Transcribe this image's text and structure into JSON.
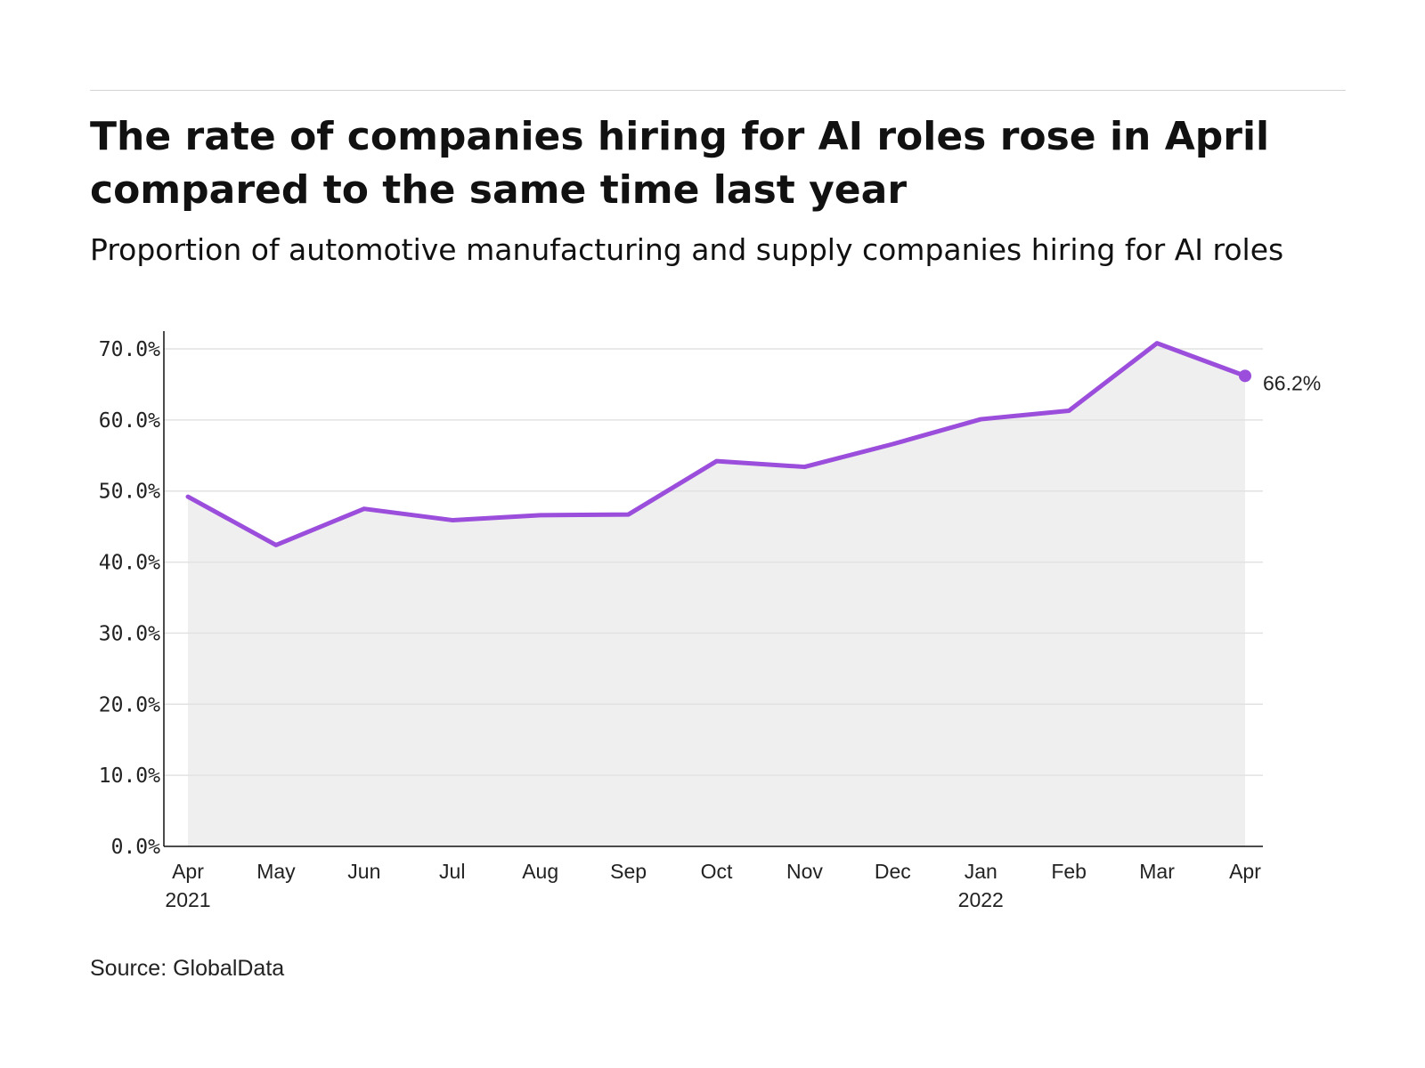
{
  "header": {
    "title": "The rate of companies hiring for AI roles rose in April compared to the same time last year",
    "subtitle": "Proportion of automotive manufacturing and supply companies hiring for AI roles"
  },
  "footer": {
    "source": "Source: GlobalData"
  },
  "chart_data": {
    "type": "area",
    "title": "The rate of companies hiring for AI roles rose in April compared to the same time last year",
    "subtitle": "Proportion of automotive manufacturing and supply companies hiring for AI roles",
    "xlabel": "",
    "ylabel": "",
    "categories": [
      "Apr 2021",
      "May",
      "Jun",
      "Jul",
      "Aug",
      "Sep",
      "Oct",
      "Nov",
      "Dec",
      "Jan 2022",
      "Feb",
      "Mar",
      "Apr"
    ],
    "x_tick_labels": [
      {
        "line1": "Apr",
        "line2": "2021"
      },
      {
        "line1": "May",
        "line2": ""
      },
      {
        "line1": "Jun",
        "line2": ""
      },
      {
        "line1": "Jul",
        "line2": ""
      },
      {
        "line1": "Aug",
        "line2": ""
      },
      {
        "line1": "Sep",
        "line2": ""
      },
      {
        "line1": "Oct",
        "line2": ""
      },
      {
        "line1": "Nov",
        "line2": ""
      },
      {
        "line1": "Dec",
        "line2": ""
      },
      {
        "line1": "Jan",
        "line2": "2022"
      },
      {
        "line1": "Feb",
        "line2": ""
      },
      {
        "line1": "Mar",
        "line2": ""
      },
      {
        "line1": "Apr",
        "line2": ""
      }
    ],
    "series": [
      {
        "values": [
          49.2,
          42.4,
          47.5,
          45.9,
          46.6,
          46.7,
          54.2,
          53.4,
          56.6,
          60.1,
          61.3,
          70.8,
          66.2
        ]
      }
    ],
    "y_ticks": [
      "0.0%",
      "10.0%",
      "20.0%",
      "30.0%",
      "40.0%",
      "50.0%",
      "60.0%",
      "70.0%"
    ],
    "ylim": [
      0,
      70
    ],
    "grid": true,
    "end_label": "66.2%",
    "colors": {
      "line": "#9b4ddb",
      "area": "#efefef",
      "grid": "#e2e2e2",
      "axis": "#111111"
    }
  }
}
